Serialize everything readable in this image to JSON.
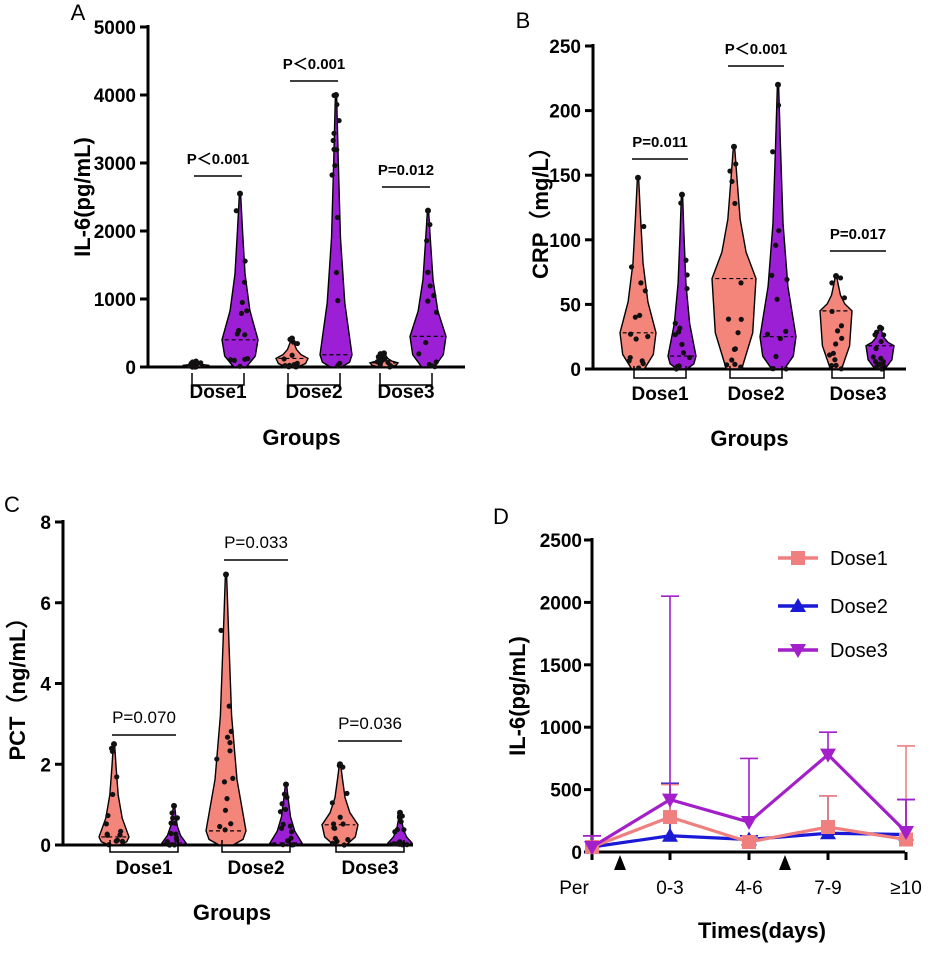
{
  "colors": {
    "salmon": "#f4857a",
    "purple": "#9c1fd6",
    "dose1_line": "#f08080",
    "dose2_line": "#1a1ad6",
    "dose3_line": "#a31fc9"
  },
  "chart_data": [
    {
      "panel": "A",
      "type": "violin",
      "ylabel": "IL-6(pg/mL)",
      "xlabel": "Groups",
      "ylim": [
        0,
        5000
      ],
      "yticks": [
        "0",
        "1000",
        "2000",
        "3000",
        "4000",
        "5000"
      ],
      "categories": [
        "Dose1",
        "Dose2",
        "Dose3"
      ],
      "series": [
        {
          "group": "Dose1",
          "left_max": 80,
          "right_max": 2550,
          "right_median": 400
        },
        {
          "group": "Dose2",
          "left_max": 420,
          "right_max": 4000,
          "right_median": 180
        },
        {
          "group": "Dose3",
          "left_max": 200,
          "right_max": 2300,
          "right_median": 450
        }
      ],
      "annotations": [
        "P＜0.001",
        "P＜0.001",
        "P=0.012"
      ]
    },
    {
      "panel": "B",
      "type": "violin",
      "ylabel": "CRP（mg/L）",
      "xlabel": "Groups",
      "ylim": [
        0,
        250
      ],
      "yticks": [
        "0",
        "50",
        "100",
        "150",
        "200",
        "250"
      ],
      "categories": [
        "Dose1",
        "Dose2",
        "Dose3"
      ],
      "series": [
        {
          "group": "Dose1",
          "left_max": 148,
          "left_median": 28,
          "right_max": 135,
          "right_median": 10
        },
        {
          "group": "Dose2",
          "left_max": 172,
          "left_median": 70,
          "right_max": 220,
          "right_median": 25
        },
        {
          "group": "Dose3",
          "left_max": 72,
          "left_median": 45,
          "right_max": 32,
          "right_median": 18
        }
      ],
      "annotations": [
        "P=0.011",
        "P＜0.001",
        "P=0.017"
      ]
    },
    {
      "panel": "C",
      "type": "violin",
      "ylabel": "PCT（ng/mL）",
      "xlabel": "Groups",
      "ylim": [
        0,
        8
      ],
      "yticks": [
        "0",
        "2",
        "4",
        "6",
        "8"
      ],
      "categories": [
        "Dose1",
        "Dose2",
        "Dose3"
      ],
      "series": [
        {
          "group": "Dose1",
          "left_max": 2.5,
          "left_median": 0.2,
          "right_max": 0.97,
          "right_median": 0.05
        },
        {
          "group": "Dose2",
          "left_max": 6.7,
          "left_median": 0.35,
          "right_max": 1.5,
          "right_median": 0.05
        },
        {
          "group": "Dose3",
          "left_max": 2.0,
          "left_median": 0.5,
          "right_max": 0.8,
          "right_median": 0.05
        }
      ],
      "annotations": [
        "P=0.070",
        "P=0.033",
        "P=0.036"
      ]
    },
    {
      "panel": "D",
      "type": "line",
      "ylabel": "IL-6(pg/mL)",
      "xlabel": "Times(days)",
      "ylim": [
        0,
        2500
      ],
      "yticks": [
        "0",
        "500",
        "1000",
        "1500",
        "2000",
        "2500"
      ],
      "categories": [
        "Per",
        "0-3",
        "4-6",
        "7-9",
        "≥10"
      ],
      "series": [
        {
          "name": "Dose1",
          "values": [
            40,
            280,
            80,
            200,
            100
          ],
          "err_up": [
            90,
            260,
            30,
            250,
            750
          ]
        },
        {
          "name": "Dose2",
          "values": [
            40,
            130,
            100,
            150,
            140
          ],
          "err_up": [
            90,
            420,
            30,
            300,
            280
          ]
        },
        {
          "name": "Dose3",
          "values": [
            40,
            420,
            240,
            780,
            160
          ],
          "err_up": [
            90,
            1630,
            510,
            180,
            260
          ]
        }
      ]
    }
  ]
}
